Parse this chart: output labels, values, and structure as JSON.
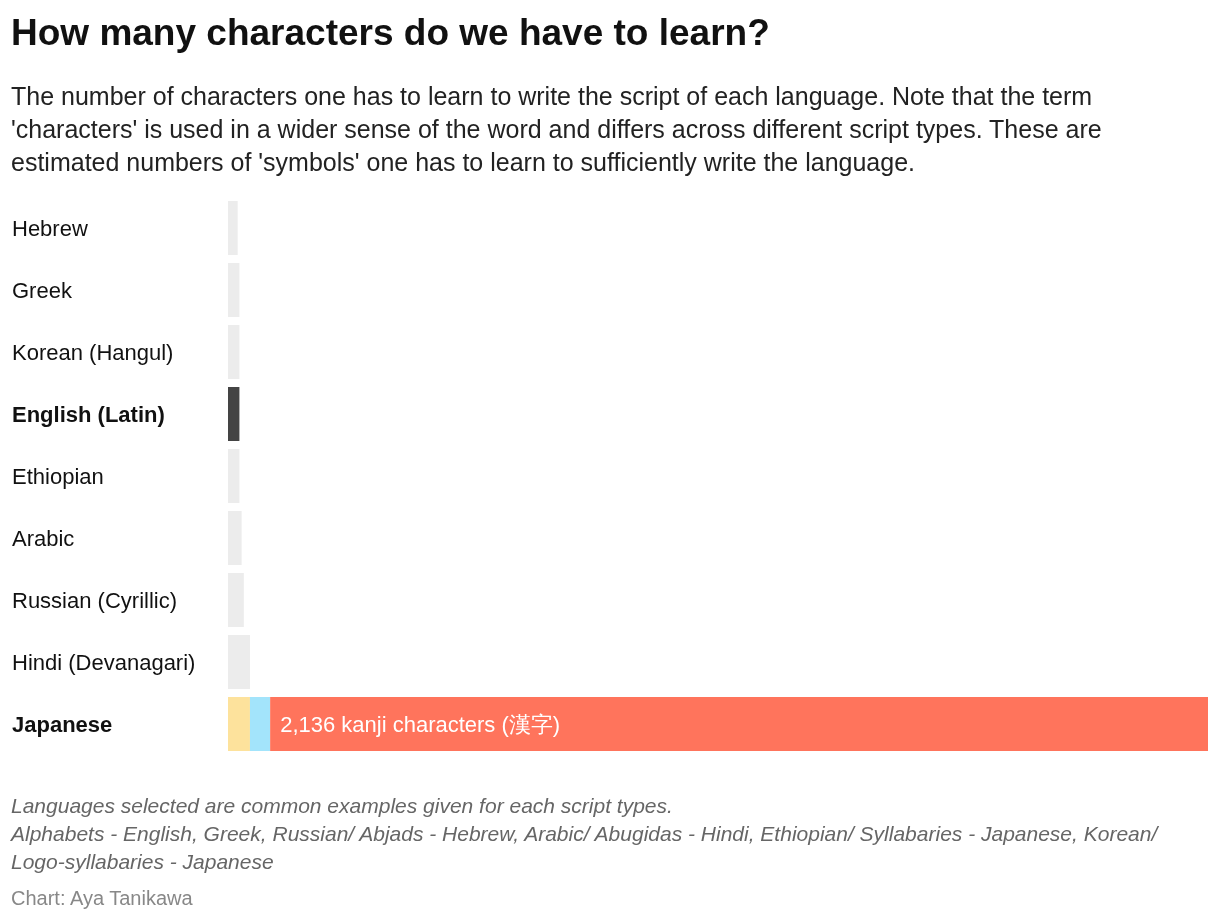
{
  "chart_data": {
    "type": "bar",
    "orientation": "horizontal",
    "stacked": true,
    "title": "How many characters do we have to learn?",
    "subtitle": "The number of characters one has to learn to write the script of each language. Note that the term 'characters' is used in a wider sense of the word and differs across different script types. These are estimated numbers of 'symbols' one has to learn to sufficiently write the language.",
    "categories": [
      "Hebrew",
      "Greek",
      "Korean (Hangul)",
      "English (Latin)",
      "Ethiopian",
      "Arabic",
      "Russian (Cyrillic)",
      "Hindi (Devanagari)",
      "Japanese"
    ],
    "series": [
      {
        "values": [
          22,
          26,
          26,
          26,
          26,
          31,
          36,
          50,
          50
        ],
        "colors": [
          "#ececec",
          "#ececec",
          "#ececec",
          "#444444",
          "#ececec",
          "#ececec",
          "#ececec",
          "#ececec",
          "#fde29c"
        ]
      },
      {
        "color": "#a3e4fb",
        "values": [
          null,
          null,
          null,
          null,
          null,
          null,
          null,
          null,
          46
        ]
      },
      {
        "color": "#ff745c",
        "values": [
          null,
          null,
          null,
          null,
          null,
          null,
          null,
          null,
          2136
        ],
        "value_labels": [
          null,
          null,
          null,
          null,
          null,
          null,
          null,
          null,
          "2,136 kanji characters (漢字)"
        ]
      }
    ],
    "annotations": [
      "Languages selected are common examples given for each script types.",
      "Alphabets - English, Greek, Russian/ Abjads - Hebrew, Arabic/ Abugidas - Hindi, Ethiopian/ Syllabaries - Japanese, Korean/ Logo-syllabaries - Japanese",
      "Chart: Aya Tanikawa"
    ]
  }
}
